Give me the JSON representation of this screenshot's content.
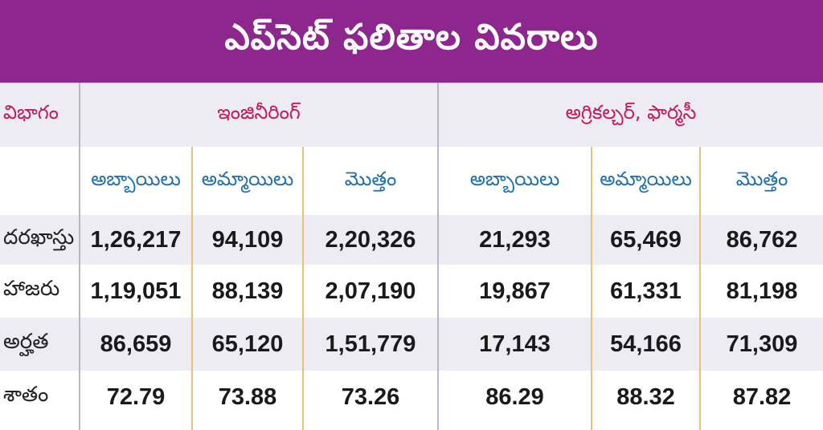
{
  "title": "ఎప్‌సెట్‌ ఫలితాల వివరాలు",
  "header": {
    "category_label": "విభాగం",
    "group1": "ఇంజినీరింగ్‌",
    "group2": "అగ్రికల్చర్‌, ఫార్మసీ"
  },
  "subheaders": [
    "అబ్బాయిలు",
    "అమ్మాయిలు",
    "మొత్తం",
    "అబ్బాయిలు",
    "అమ్మాయిలు",
    "మొత్తం"
  ],
  "rows": [
    {
      "label": "దరఖాస్తు",
      "values": [
        "1,26,217",
        "94,109",
        "2,20,326",
        "21,293",
        "65,469",
        "86,762"
      ]
    },
    {
      "label": "హాజరు",
      "values": [
        "1,19,051",
        "88,139",
        "2,07,190",
        "19,867",
        "61,331",
        "81,198"
      ]
    },
    {
      "label": "అర్హత",
      "values": [
        "86,659",
        "65,120",
        "1,51,779",
        "17,143",
        "54,166",
        "71,309"
      ]
    },
    {
      "label": "శాతం",
      "values": [
        "72.79",
        "73.88",
        "73.26",
        "86.29",
        "88.32",
        "87.82"
      ]
    }
  ],
  "colors": {
    "title_bar": "#8e278d",
    "group_header_text": "#c2185b",
    "subheader_text": "#1d6fb0",
    "band_light": "#eeecf3",
    "divider_gold": "#e7c07a"
  }
}
